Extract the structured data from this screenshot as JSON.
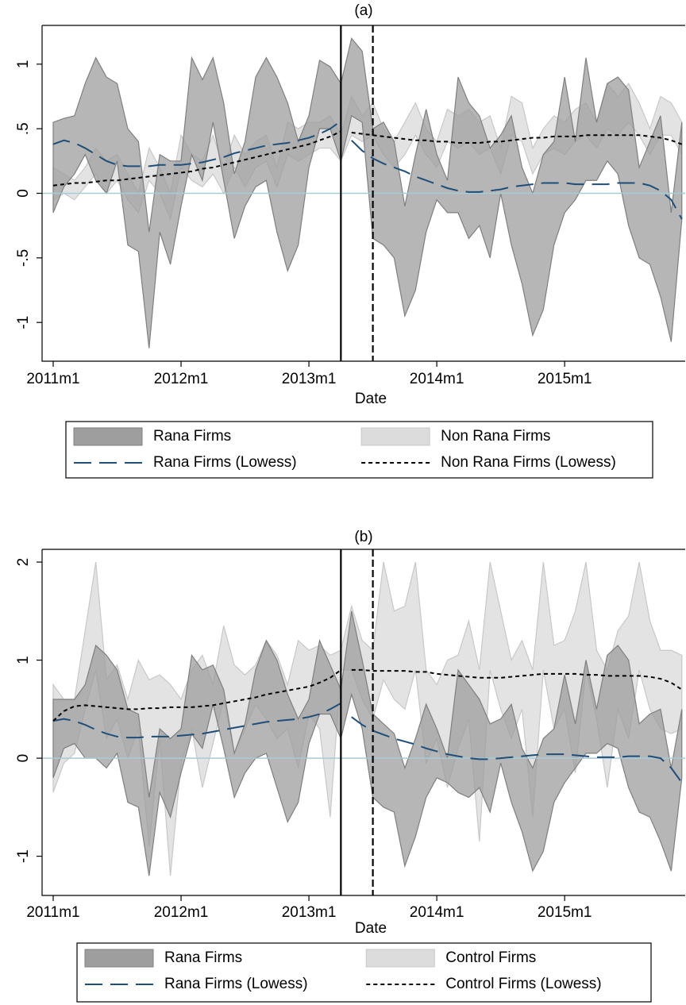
{
  "chart_data": [
    {
      "type": "rangearea",
      "title": "(a)",
      "xlabel": "Date",
      "categories": [
        "2011m1",
        "2011m2",
        "2011m3",
        "2011m4",
        "2011m5",
        "2011m6",
        "2011m7",
        "2011m8",
        "2011m9",
        "2011m10",
        "2011m11",
        "2011m12",
        "2012m1",
        "2012m2",
        "2012m3",
        "2012m4",
        "2012m5",
        "2012m6",
        "2012m7",
        "2012m8",
        "2012m9",
        "2012m10",
        "2012m11",
        "2012m12",
        "2013m1",
        "2013m2",
        "2013m3",
        "2013m4",
        "2013m5",
        "2013m6",
        "2013m7",
        "2013m8",
        "2013m9",
        "2013m10",
        "2013m11",
        "2013m12",
        "2014m1",
        "2014m2",
        "2014m3",
        "2014m4",
        "2014m5",
        "2014m6",
        "2014m7",
        "2014m8",
        "2014m9",
        "2014m10",
        "2014m11",
        "2014m12",
        "2015m1",
        "2015m2",
        "2015m3",
        "2015m4",
        "2015m5",
        "2015m6",
        "2015m7",
        "2015m8",
        "2015m9",
        "2015m10",
        "2015m11",
        "2015m12"
      ],
      "xticks": [
        "2011m1",
        "2012m1",
        "2013m1",
        "2014m1",
        "2015m1"
      ],
      "ylim": [
        -1.3,
        1.3
      ],
      "yticks": [
        -1,
        {
          "value": -0.5,
          "label": "-.5"
        },
        0,
        {
          "value": 0.5,
          "label": ".5"
        },
        1
      ],
      "hline": {
        "value": 0,
        "color": "#a8cbd6"
      },
      "vlines": [
        {
          "at": "2013m4",
          "style": "solid"
        },
        {
          "at": "2013m7",
          "style": "dashed"
        }
      ],
      "series": [
        {
          "name": "Rana Firms",
          "kind": "band",
          "color": "#9e9e9e",
          "high": [
            0.55,
            0.58,
            0.6,
            0.85,
            1.05,
            0.9,
            0.85,
            0.5,
            0.4,
            -0.3,
            0.3,
            0.25,
            0.25,
            1.05,
            0.88,
            1.05,
            0.7,
            0.15,
            0.4,
            0.9,
            1.05,
            0.9,
            0.7,
            0.4,
            0.6,
            1.03,
            0.98,
            0.85,
            1.2,
            1.1,
            0.5,
            0.55,
            0.4,
            -0.1,
            0.3,
            0.65,
            0.3,
            0.1,
            0.9,
            0.7,
            0.6,
            0.35,
            0.45,
            0.6,
            0.2,
            0.0,
            0.3,
            0.4,
            0.9,
            0.4,
            1.05,
            0.55,
            0.85,
            0.9,
            0.8,
            0.2,
            0.4,
            0.6,
            -0.15,
            0.55
          ],
          "low": [
            -0.15,
            0.05,
            0.15,
            0.3,
            0.1,
            0.0,
            0.25,
            -0.4,
            -0.45,
            -1.2,
            -0.3,
            -0.55,
            -0.1,
            0.3,
            0.1,
            0.55,
            0.1,
            -0.35,
            -0.1,
            0.05,
            0.1,
            -0.3,
            -0.6,
            -0.4,
            0.2,
            0.5,
            0.5,
            0.25,
            0.6,
            0.55,
            -0.35,
            -0.4,
            -0.5,
            -0.95,
            -0.75,
            -0.3,
            -0.05,
            -0.15,
            -0.15,
            -0.35,
            -0.25,
            -0.5,
            0.0,
            -0.4,
            -0.7,
            -1.1,
            -0.9,
            -0.4,
            -0.15,
            -0.05,
            0.1,
            0.1,
            0.25,
            0.15,
            -0.25,
            -0.5,
            -0.55,
            -0.8,
            -1.15,
            -0.2
          ]
        },
        {
          "name": "Non Rana Firms",
          "kind": "band",
          "color": "#dcdcdc",
          "high": [
            0.2,
            0.15,
            0.1,
            0.2,
            0.35,
            0.25,
            0.3,
            0.15,
            0.0,
            0.35,
            0.2,
            0.0,
            0.45,
            0.3,
            0.25,
            0.45,
            0.2,
            0.45,
            0.3,
            0.4,
            0.45,
            0.2,
            0.55,
            0.5,
            0.55,
            0.55,
            0.6,
            0.45,
            0.75,
            0.6,
            0.7,
            0.5,
            0.4,
            0.55,
            0.7,
            0.5,
            0.4,
            0.65,
            0.6,
            0.65,
            0.55,
            0.6,
            0.35,
            0.75,
            0.7,
            0.35,
            0.5,
            0.6,
            0.55,
            0.65,
            0.7,
            0.55,
            0.85,
            0.75,
            0.85,
            0.7,
            0.5,
            0.75,
            0.7,
            0.55
          ],
          "low": [
            -0.05,
            0.0,
            -0.05,
            0.05,
            0.15,
            0.0,
            0.1,
            -0.05,
            -0.15,
            0.1,
            0.0,
            -0.2,
            0.2,
            0.1,
            0.05,
            0.15,
            0.0,
            0.2,
            0.05,
            0.2,
            0.25,
            0.05,
            0.3,
            0.25,
            0.3,
            0.35,
            0.35,
            0.25,
            0.45,
            0.4,
            0.45,
            0.3,
            0.2,
            0.3,
            0.45,
            0.3,
            0.2,
            0.4,
            0.35,
            0.4,
            0.3,
            0.35,
            0.15,
            0.45,
            0.4,
            0.15,
            0.3,
            0.35,
            0.3,
            0.4,
            0.45,
            0.35,
            0.5,
            0.45,
            0.55,
            0.45,
            0.3,
            0.45,
            0.45,
            0.3
          ]
        },
        {
          "name": "Rana Firms (Lowess)",
          "kind": "line",
          "color": "#1f4e79",
          "dash": "long",
          "pieces": [
            {
              "from": "2011m1",
              "values": [
                0.38,
                0.41,
                0.39,
                0.35,
                0.3,
                0.25,
                0.22,
                0.21,
                0.21,
                0.21,
                0.22,
                0.22,
                0.22,
                0.23,
                0.24,
                0.26,
                0.28,
                0.31,
                0.33,
                0.35,
                0.37,
                0.38,
                0.39,
                0.41,
                0.43,
                0.46,
                0.5,
                0.56
              ]
            },
            {
              "from": "2013m5",
              "values": [
                0.41,
                0.33,
                0.27,
                0.23,
                0.2,
                0.17,
                0.13,
                0.1,
                0.07,
                0.04,
                0.02,
                0.01,
                0.01,
                0.02,
                0.03,
                0.05,
                0.06,
                0.07,
                0.08,
                0.08,
                0.08,
                0.07,
                0.07,
                0.07,
                0.07,
                0.08,
                0.08,
                0.08,
                0.06,
                0.02,
                -0.05,
                -0.2
              ]
            }
          ]
        },
        {
          "name": "Non Rana Firms (Lowess)",
          "kind": "line",
          "color": "#000000",
          "dash": "short",
          "pieces": [
            {
              "from": "2011m1",
              "values": [
                0.06,
                0.07,
                0.08,
                0.08,
                0.09,
                0.1,
                0.1,
                0.11,
                0.12,
                0.13,
                0.14,
                0.15,
                0.16,
                0.17,
                0.19,
                0.2,
                0.22,
                0.24,
                0.26,
                0.28,
                0.3,
                0.32,
                0.34,
                0.36,
                0.38,
                0.41,
                0.44,
                0.48
              ]
            },
            {
              "from": "2013m5",
              "values": [
                0.47,
                0.46,
                0.45,
                0.44,
                0.43,
                0.42,
                0.41,
                0.41,
                0.4,
                0.4,
                0.39,
                0.39,
                0.39,
                0.4,
                0.4,
                0.41,
                0.42,
                0.43,
                0.43,
                0.44,
                0.44,
                0.44,
                0.45,
                0.45,
                0.45,
                0.45,
                0.45,
                0.45,
                0.44,
                0.43,
                0.41,
                0.38
              ]
            }
          ]
        }
      ]
    },
    {
      "type": "rangearea",
      "title": "(b)",
      "xlabel": "Date",
      "categories": [
        "2011m1",
        "2011m2",
        "2011m3",
        "2011m4",
        "2011m5",
        "2011m6",
        "2011m7",
        "2011m8",
        "2011m9",
        "2011m10",
        "2011m11",
        "2011m12",
        "2012m1",
        "2012m2",
        "2012m3",
        "2012m4",
        "2012m5",
        "2012m6",
        "2012m7",
        "2012m8",
        "2012m9",
        "2012m10",
        "2012m11",
        "2012m12",
        "2013m1",
        "2013m2",
        "2013m3",
        "2013m4",
        "2013m5",
        "2013m6",
        "2013m7",
        "2013m8",
        "2013m9",
        "2013m10",
        "2013m11",
        "2013m12",
        "2014m1",
        "2014m2",
        "2014m3",
        "2014m4",
        "2014m5",
        "2014m6",
        "2014m7",
        "2014m8",
        "2014m9",
        "2014m10",
        "2014m11",
        "2014m12",
        "2015m1",
        "2015m2",
        "2015m3",
        "2015m4",
        "2015m5",
        "2015m6",
        "2015m7",
        "2015m8",
        "2015m9",
        "2015m10",
        "2015m11",
        "2015m12"
      ],
      "xticks": [
        "2011m1",
        "2012m1",
        "2013m1",
        "2014m1",
        "2015m1"
      ],
      "ylim": [
        -1.4,
        2.13
      ],
      "yticks": [
        -1,
        0,
        1,
        2
      ],
      "hline": {
        "value": 0,
        "color": "#a8cbd6"
      },
      "vlines": [
        {
          "at": "2013m4",
          "style": "solid"
        },
        {
          "at": "2013m7",
          "style": "dashed"
        }
      ],
      "series": [
        {
          "name": "Rana Firms",
          "kind": "band",
          "color": "#9e9e9e",
          "high": [
            0.6,
            0.6,
            0.6,
            0.75,
            1.15,
            1.05,
            0.9,
            0.5,
            0.45,
            -0.4,
            0.3,
            0.2,
            0.3,
            1.05,
            0.9,
            0.95,
            0.7,
            0.05,
            0.35,
            0.9,
            1.2,
            1.0,
            0.65,
            0.4,
            0.6,
            1.2,
            0.95,
            0.7,
            1.5,
            1.0,
            0.45,
            0.35,
            0.25,
            -0.1,
            0.2,
            0.55,
            0.3,
            0.0,
            0.9,
            0.75,
            0.6,
            0.35,
            0.4,
            0.55,
            0.1,
            -0.1,
            0.2,
            0.3,
            0.85,
            0.35,
            1.0,
            0.5,
            1.05,
            1.15,
            1.0,
            0.35,
            0.45,
            0.5,
            -0.1,
            0.5
          ],
          "low": [
            -0.2,
            0.1,
            0.15,
            0.0,
            0.0,
            -0.1,
            0.05,
            -0.45,
            -0.5,
            -1.2,
            -0.35,
            -0.6,
            -0.15,
            0.25,
            0.1,
            0.55,
            0.1,
            -0.4,
            -0.15,
            0.0,
            0.05,
            -0.3,
            -0.65,
            -0.45,
            0.15,
            0.45,
            0.45,
            0.2,
            0.65,
            0.3,
            -0.4,
            -0.5,
            -0.55,
            -1.1,
            -0.8,
            -0.4,
            -0.2,
            -0.25,
            -0.35,
            -0.4,
            -0.3,
            -0.55,
            -0.05,
            -0.45,
            -0.75,
            -1.15,
            -0.95,
            -0.45,
            -0.25,
            -0.1,
            0.05,
            0.05,
            0.15,
            0.1,
            -0.3,
            -0.55,
            -0.6,
            -0.85,
            -1.15,
            -0.2
          ]
        },
        {
          "name": "Control Firms",
          "kind": "band",
          "color": "#dcdcdc",
          "high": [
            0.75,
            0.6,
            0.6,
            1.3,
            2.0,
            0.8,
            0.95,
            0.6,
            1.0,
            0.8,
            0.85,
            0.75,
            0.6,
            0.9,
            1.05,
            0.75,
            1.35,
            0.95,
            0.85,
            0.95,
            1.2,
            1.05,
            0.75,
            1.2,
            1.1,
            1.15,
            1.05,
            1.1,
            1.55,
            1.2,
            1.1,
            2.0,
            1.5,
            1.55,
            2.0,
            0.9,
            0.75,
            1.0,
            1.05,
            1.4,
            0.9,
            2.0,
            1.5,
            1.0,
            1.2,
            0.9,
            2.0,
            1.15,
            1.2,
            1.5,
            2.0,
            1.1,
            0.9,
            1.3,
            1.45,
            2.0,
            1.4,
            1.1,
            1.1,
            1.05
          ],
          "low": [
            -0.35,
            -0.05,
            0.05,
            0.5,
            0.9,
            0.2,
            0.4,
            0.0,
            0.3,
            -0.9,
            0.2,
            -1.2,
            -0.05,
            0.3,
            -0.3,
            0.15,
            0.6,
            0.05,
            0.3,
            0.55,
            0.4,
            0.2,
            0.3,
            -0.1,
            0.45,
            0.3,
            -0.6,
            0.9,
            0.9,
            0.6,
            0.4,
            0.8,
            0.6,
            0.5,
            0.9,
            -0.05,
            0.2,
            -0.3,
            0.1,
            0.4,
            -0.85,
            0.9,
            0.5,
            0.2,
            0.5,
            -0.6,
            0.9,
            0.3,
            0.5,
            -0.15,
            0.9,
            0.4,
            -0.3,
            0.5,
            0.2,
            0.9,
            0.5,
            0.3,
            0.25,
            0.3
          ]
        },
        {
          "name": "Rana Firms (Lowess)",
          "kind": "line",
          "color": "#1f4e79",
          "dash": "long",
          "pieces": [
            {
              "from": "2011m1",
              "values": [
                0.38,
                0.4,
                0.38,
                0.34,
                0.29,
                0.25,
                0.22,
                0.21,
                0.21,
                0.22,
                0.22,
                0.22,
                0.23,
                0.24,
                0.25,
                0.27,
                0.29,
                0.31,
                0.33,
                0.35,
                0.37,
                0.38,
                0.39,
                0.4,
                0.42,
                0.45,
                0.5,
                0.56
              ]
            },
            {
              "from": "2013m5",
              "values": [
                0.42,
                0.34,
                0.28,
                0.24,
                0.2,
                0.17,
                0.14,
                0.1,
                0.07,
                0.04,
                0.02,
                0.0,
                -0.01,
                -0.01,
                0.0,
                0.01,
                0.02,
                0.03,
                0.04,
                0.04,
                0.04,
                0.03,
                0.02,
                0.01,
                0.01,
                0.01,
                0.02,
                0.02,
                0.02,
                0.0,
                -0.1,
                -0.25
              ]
            }
          ]
        },
        {
          "name": "Control Firms (Lowess)",
          "kind": "line",
          "color": "#000000",
          "dash": "short",
          "pieces": [
            {
              "from": "2011m1",
              "values": [
                0.38,
                0.48,
                0.53,
                0.54,
                0.53,
                0.52,
                0.51,
                0.5,
                0.5,
                0.51,
                0.51,
                0.52,
                0.52,
                0.52,
                0.53,
                0.54,
                0.56,
                0.58,
                0.6,
                0.62,
                0.65,
                0.67,
                0.69,
                0.71,
                0.73,
                0.77,
                0.82,
                0.9
              ]
            },
            {
              "from": "2013m5",
              "values": [
                0.9,
                0.9,
                0.89,
                0.89,
                0.89,
                0.89,
                0.88,
                0.88,
                0.86,
                0.85,
                0.84,
                0.83,
                0.82,
                0.82,
                0.82,
                0.83,
                0.84,
                0.85,
                0.86,
                0.86,
                0.86,
                0.86,
                0.85,
                0.85,
                0.84,
                0.84,
                0.84,
                0.84,
                0.83,
                0.81,
                0.77,
                0.7
              ]
            }
          ]
        }
      ]
    }
  ]
}
